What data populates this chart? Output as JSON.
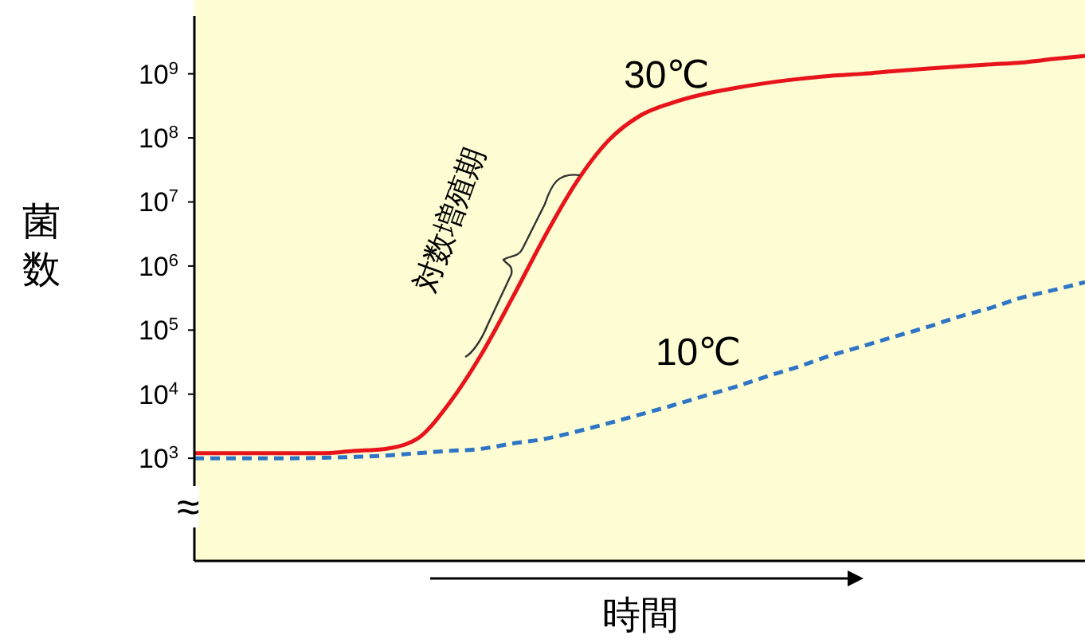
{
  "chart_data": {
    "type": "line",
    "ylabel": "菌数",
    "xlabel": "時間",
    "log": "y",
    "marker": "none",
    "ylim": [
      25,
      8000000000
    ],
    "yticks": [
      {
        "value": 1000,
        "label": "10$^{3}$"
      },
      {
        "value": 10000,
        "label": "10$^{4}$"
      },
      {
        "value": 100000,
        "label": "10$^{5}$"
      },
      {
        "value": 1000000,
        "label": "10$^{6}$"
      },
      {
        "value": 10000000,
        "label": "10$^{7}$"
      },
      {
        "value": 100000000,
        "label": "10$^{8}$"
      },
      {
        "value": 1000000000,
        "label": "10$^{9}$"
      }
    ],
    "categories": [
      null,
      null,
      null,
      null,
      null,
      null,
      null,
      null,
      null,
      null,
      null,
      null,
      null,
      null,
      null,
      null,
      null,
      null,
      null,
      null,
      null,
      null,
      null,
      null,
      null,
      null,
      null,
      null,
      null
    ],
    "series": [
      {
        "name": "30℃",
        "color": "#e8141c",
        "line_style": "solid",
        "values": [
          1200,
          1200,
          1200,
          1200,
          1200,
          1300,
          1400,
          2000,
          7100,
          40000,
          320000,
          2800000,
          20000000,
          89000000,
          220000000,
          350000000,
          480000000,
          600000000,
          720000000,
          830000000,
          930000000,
          1000000000,
          1100000000,
          1200000000,
          1300000000,
          1400000000,
          1500000000,
          1700000000,
          1900000000
        ]
      },
      {
        "name": "10℃",
        "color": "#2e75c6",
        "line_style": "dashed",
        "values": [
          1000,
          1000,
          1000,
          1000,
          1020,
          1050,
          1100,
          1200,
          1300,
          1400,
          1700,
          2000,
          2600,
          3500,
          4800,
          6600,
          9300,
          13000,
          19000,
          27000,
          40000,
          56000,
          79000,
          110000,
          160000,
          220000,
          320000,
          420000,
          560000
        ]
      }
    ],
    "annotations": [
      "対数増殖期",
      "≈"
    ]
  }
}
